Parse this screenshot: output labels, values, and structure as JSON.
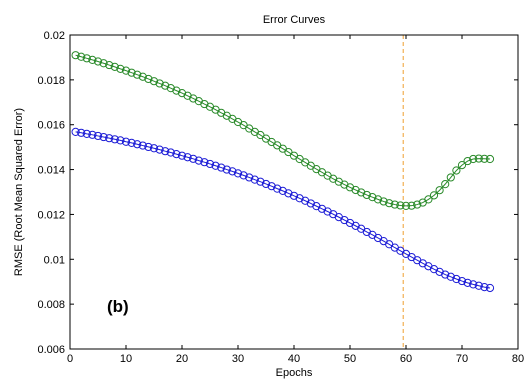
{
  "chart_data": {
    "type": "scatter",
    "title": "Error Curves",
    "xlabel": "Epochs",
    "ylabel": "RMSE (Root Mean Squared Error)",
    "xlim": [
      0,
      80
    ],
    "ylim": [
      0.006,
      0.02
    ],
    "xticks": [
      "0",
      "10",
      "20",
      "30",
      "40",
      "50",
      "60",
      "70",
      "80"
    ],
    "yticks": [
      "0.006",
      "0.008",
      "0.01",
      "0.012",
      "0.014",
      "0.016",
      "0.018",
      "0.02"
    ],
    "grid": false,
    "annotation": "(b)",
    "vline_x": 59.5,
    "vline_color": "#f0a030",
    "series": [
      {
        "color": "#2a8a2a",
        "x": [
          1,
          2,
          3,
          4,
          5,
          6,
          7,
          8,
          9,
          10,
          11,
          12,
          13,
          14,
          15,
          16,
          17,
          18,
          19,
          20,
          21,
          22,
          23,
          24,
          25,
          26,
          27,
          28,
          29,
          30,
          31,
          32,
          33,
          34,
          35,
          36,
          37,
          38,
          39,
          40,
          41,
          42,
          43,
          44,
          45,
          46,
          47,
          48,
          49,
          50,
          51,
          52,
          53,
          54,
          55,
          56,
          57,
          58,
          59,
          60,
          61,
          62,
          63,
          64,
          65,
          66,
          67,
          68,
          69,
          70,
          71,
          72,
          73,
          74,
          75
        ],
        "y": [
          0.0191,
          0.01903,
          0.01896,
          0.01889,
          0.01882,
          0.01874,
          0.01866,
          0.01858,
          0.01849,
          0.01841,
          0.01832,
          0.01823,
          0.01814,
          0.01804,
          0.01794,
          0.01784,
          0.01774,
          0.01763,
          0.01752,
          0.01741,
          0.01729,
          0.01717,
          0.01705,
          0.01692,
          0.0168,
          0.01667,
          0.01653,
          0.0164,
          0.01626,
          0.01612,
          0.01598,
          0.01583,
          0.01568,
          0.01554,
          0.01538,
          0.01523,
          0.01508,
          0.01493,
          0.01478,
          0.01462,
          0.01447,
          0.01432,
          0.01417,
          0.01402,
          0.01388,
          0.01373,
          0.01359,
          0.01346,
          0.01333,
          0.01321,
          0.01309,
          0.01298,
          0.01287,
          0.01277,
          0.01267,
          0.01258,
          0.0125,
          0.01244,
          0.0124,
          0.01238,
          0.01239,
          0.01244,
          0.01253,
          0.01267,
          0.01285,
          0.01308,
          0.01335,
          0.01365,
          0.01396,
          0.0142,
          0.01438,
          0.01447,
          0.01449,
          0.01448,
          0.01447
        ]
      },
      {
        "color": "#1c1cd6",
        "x": [
          1,
          2,
          3,
          4,
          5,
          6,
          7,
          8,
          9,
          10,
          11,
          12,
          13,
          14,
          15,
          16,
          17,
          18,
          19,
          20,
          21,
          22,
          23,
          24,
          25,
          26,
          27,
          28,
          29,
          30,
          31,
          32,
          33,
          34,
          35,
          36,
          37,
          38,
          39,
          40,
          41,
          42,
          43,
          44,
          45,
          46,
          47,
          48,
          49,
          50,
          51,
          52,
          53,
          54,
          55,
          56,
          57,
          58,
          59,
          60,
          61,
          62,
          63,
          64,
          65,
          66,
          67,
          68,
          69,
          70,
          71,
          72,
          73,
          74,
          75
        ],
        "y": [
          0.01568,
          0.01564,
          0.01559,
          0.01555,
          0.0155,
          0.01545,
          0.0154,
          0.01535,
          0.0153,
          0.01524,
          0.01519,
          0.01513,
          0.01507,
          0.01501,
          0.01495,
          0.01489,
          0.01482,
          0.01476,
          0.01469,
          0.01462,
          0.01455,
          0.01448,
          0.0144,
          0.01433,
          0.01425,
          0.01417,
          0.01409,
          0.014,
          0.01392,
          0.01383,
          0.01374,
          0.01365,
          0.01355,
          0.01346,
          0.01336,
          0.01326,
          0.01315,
          0.01305,
          0.01294,
          0.01283,
          0.01272,
          0.01261,
          0.01249,
          0.01237,
          0.01225,
          0.01213,
          0.01201,
          0.01188,
          0.01175,
          0.01162,
          0.01149,
          0.01136,
          0.01122,
          0.01109,
          0.01095,
          0.01081,
          0.01067,
          0.01052,
          0.01038,
          0.01024,
          0.0101,
          0.00996,
          0.00982,
          0.00969,
          0.00956,
          0.00944,
          0.00932,
          0.00922,
          0.00912,
          0.00903,
          0.00895,
          0.00888,
          0.00882,
          0.00876,
          0.00872
        ]
      }
    ]
  }
}
